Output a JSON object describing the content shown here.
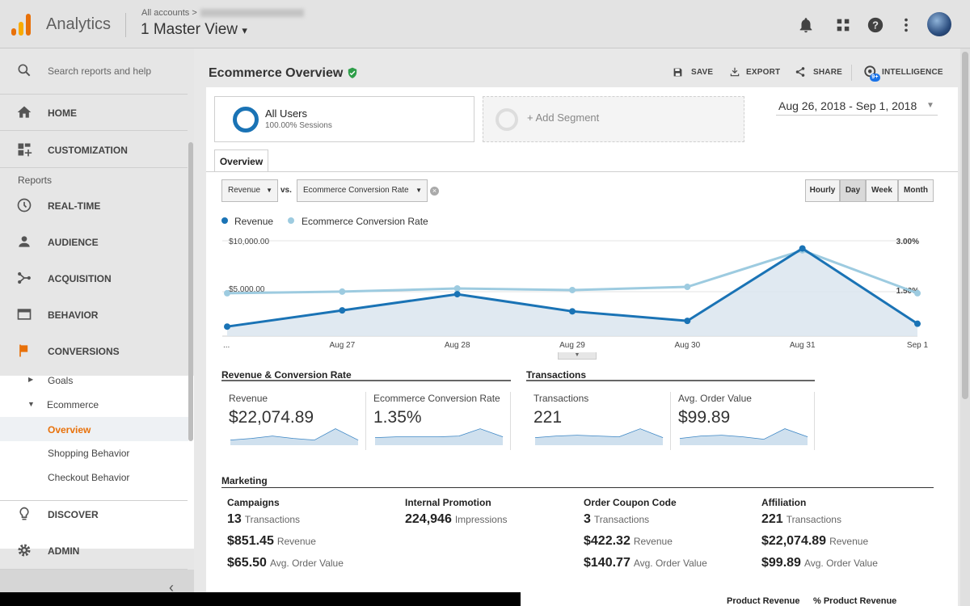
{
  "app": {
    "name": "Analytics",
    "breadcrumb": "All accounts",
    "breadcrumb_sep": ">",
    "view": "1 Master View",
    "view_caret": "▾"
  },
  "topbar_icons": [
    "bell-icon",
    "apps-grid-icon",
    "help-icon",
    "more-vert-icon",
    "avatar"
  ],
  "sidebar": {
    "search_placeholder": "Search reports and help",
    "home": "HOME",
    "customization": "CUSTOMIZATION",
    "reports_heading": "Reports",
    "realtime": "REAL-TIME",
    "audience": "AUDIENCE",
    "acquisition": "ACQUISITION",
    "behavior": "BEHAVIOR",
    "conversions": "CONVERSIONS",
    "goals": "Goals",
    "ecommerce": "Ecommerce",
    "overview": "Overview",
    "shopping_behavior": "Shopping Behavior",
    "checkout_behavior": "Checkout Behavior",
    "discover": "DISCOVER",
    "admin": "ADMIN",
    "collapse": "‹"
  },
  "colors": {
    "accent_orange": "#e8710a",
    "revenue_blue": "#1a73b5",
    "conv_light_blue": "#9dcbe0",
    "verified_green": "#2e9e49"
  },
  "header": {
    "title": "Ecommerce Overview",
    "save": "SAVE",
    "export": "EXPORT",
    "share": "SHARE",
    "intelligence": "INTELLIGENCE",
    "intelligence_badge": "9+"
  },
  "segments": {
    "all_users": "All Users",
    "all_users_sub": "100.00% Sessions",
    "add_segment": "+ Add Segment"
  },
  "date_range": "Aug 26, 2018 - Sep 1, 2018",
  "tabs": {
    "overview": "Overview"
  },
  "controls": {
    "metric1": "Revenue",
    "vs": "vs.",
    "metric2": "Ecommerce Conversion Rate",
    "granularity": [
      "Hourly",
      "Day",
      "Week",
      "Month"
    ],
    "granularity_selected": "Day"
  },
  "chart_data": {
    "type": "line",
    "x": [
      "...",
      "Aug 27",
      "Aug 28",
      "Aug 29",
      "Aug 30",
      "Aug 31",
      "Sep 1"
    ],
    "series": [
      {
        "name": "Revenue",
        "axis": "left",
        "color": "#1a73b5",
        "values": [
          1000,
          2700,
          4400,
          2600,
          1600,
          9200,
          1300
        ]
      },
      {
        "name": "Ecommerce Conversion Rate",
        "axis": "right",
        "color": "#9dcbe0",
        "values": [
          1.35,
          1.4,
          1.5,
          1.45,
          1.55,
          2.7,
          1.35
        ]
      }
    ],
    "y_left_ticks": [
      "$10,000.00",
      "$5,000.00"
    ],
    "y_left_range": [
      0,
      10000
    ],
    "y_right_ticks": [
      "3.00%",
      "1.50%"
    ],
    "y_right_range": [
      0,
      3
    ],
    "grid": true,
    "legend": "top-left"
  },
  "summary": {
    "section1_title": "Revenue & Conversion Rate",
    "section2_title": "Transactions",
    "metrics": [
      {
        "label": "Revenue",
        "value": "$22,074.89"
      },
      {
        "label": "Ecommerce Conversion Rate",
        "value": "1.35%"
      },
      {
        "label": "Transactions",
        "value": "221"
      },
      {
        "label": "Avg. Order Value",
        "value": "$99.89"
      }
    ]
  },
  "marketing": {
    "title": "Marketing",
    "columns": [
      {
        "heading": "Campaigns",
        "rows": [
          {
            "v": "13",
            "u": "Transactions"
          },
          {
            "v": "$851.45",
            "u": "Revenue"
          },
          {
            "v": "$65.50",
            "u": "Avg. Order Value"
          }
        ]
      },
      {
        "heading": "Internal Promotion",
        "rows": [
          {
            "v": "224,946",
            "u": "Impressions"
          }
        ]
      },
      {
        "heading": "Order Coupon Code",
        "rows": [
          {
            "v": "3",
            "u": "Transactions"
          },
          {
            "v": "$422.32",
            "u": "Revenue"
          },
          {
            "v": "$140.77",
            "u": "Avg. Order Value"
          }
        ]
      },
      {
        "heading": "Affiliation",
        "rows": [
          {
            "v": "221",
            "u": "Transactions"
          },
          {
            "v": "$22,074.89",
            "u": "Revenue"
          },
          {
            "v": "$99.89",
            "u": "Avg. Order Value"
          }
        ]
      }
    ]
  },
  "footer": {
    "product_revenue": "Product Revenue",
    "pct_product_revenue": "% Product Revenue"
  }
}
